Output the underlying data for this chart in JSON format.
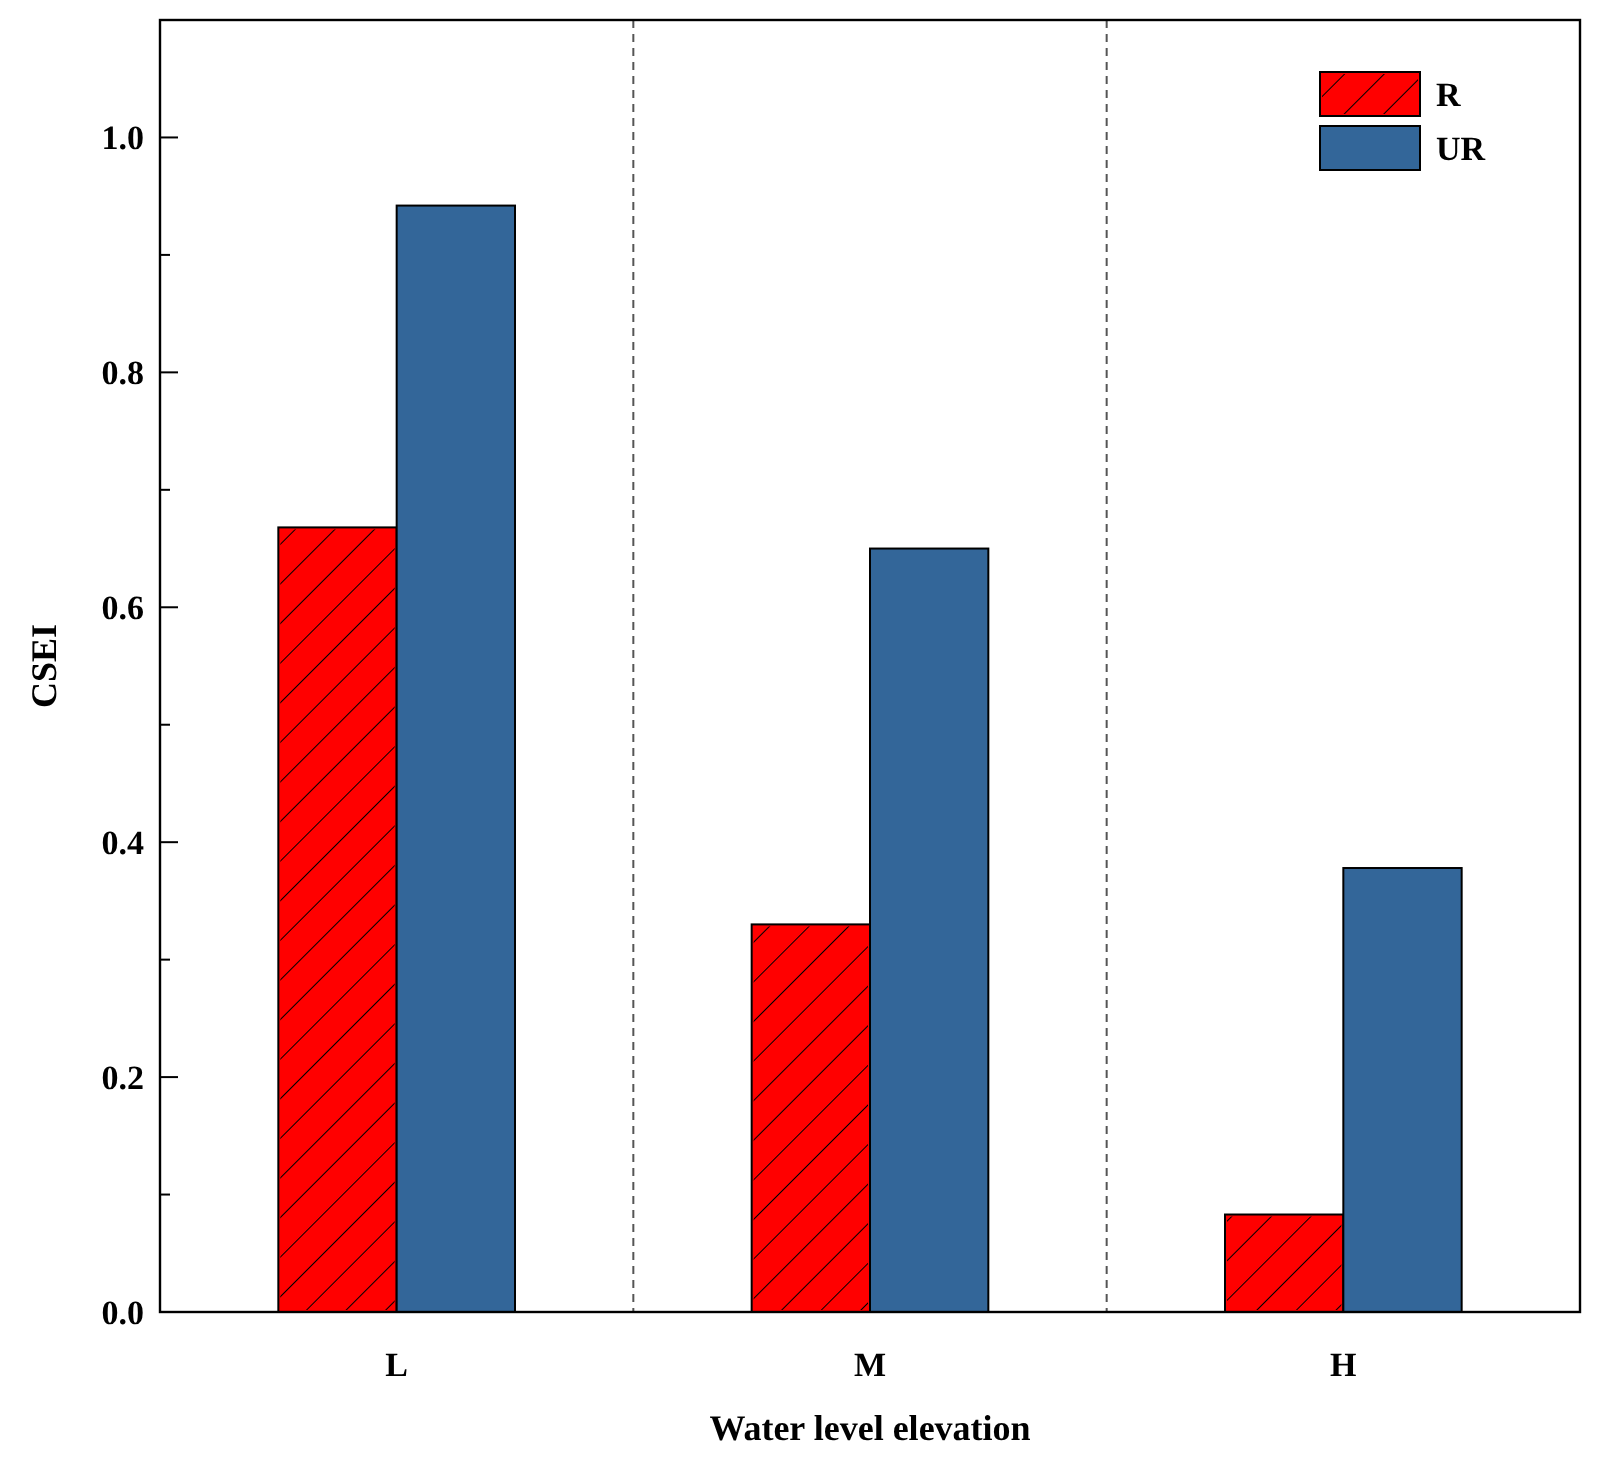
{
  "chart_data": {
    "type": "bar",
    "xlabel": "Water level elevation",
    "ylabel": "CSEI",
    "categories": [
      "L",
      "M",
      "H"
    ],
    "series": [
      {
        "name": "R",
        "color": "#ff0000",
        "values": [
          0.668,
          0.33,
          0.083
        ]
      },
      {
        "name": "UR",
        "color": "#336699",
        "values": [
          0.942,
          0.65,
          0.378
        ]
      }
    ],
    "ylim": [
      0,
      1.1
    ],
    "yticks": [
      "0.0",
      {
        "value": 0.1,
        "label": null
      },
      0.2,
      {
        "value": 0.3,
        "label": null
      },
      0.4,
      {
        "value": 0.5,
        "label": null
      },
      0.6,
      {
        "value": 0.7,
        "label": null
      },
      0.8,
      {
        "value": 0.9,
        "label": null
      },
      "1.0",
      {
        "value": 1.1,
        "label": null
      }
    ],
    "grid": false,
    "legend": "top right"
  }
}
